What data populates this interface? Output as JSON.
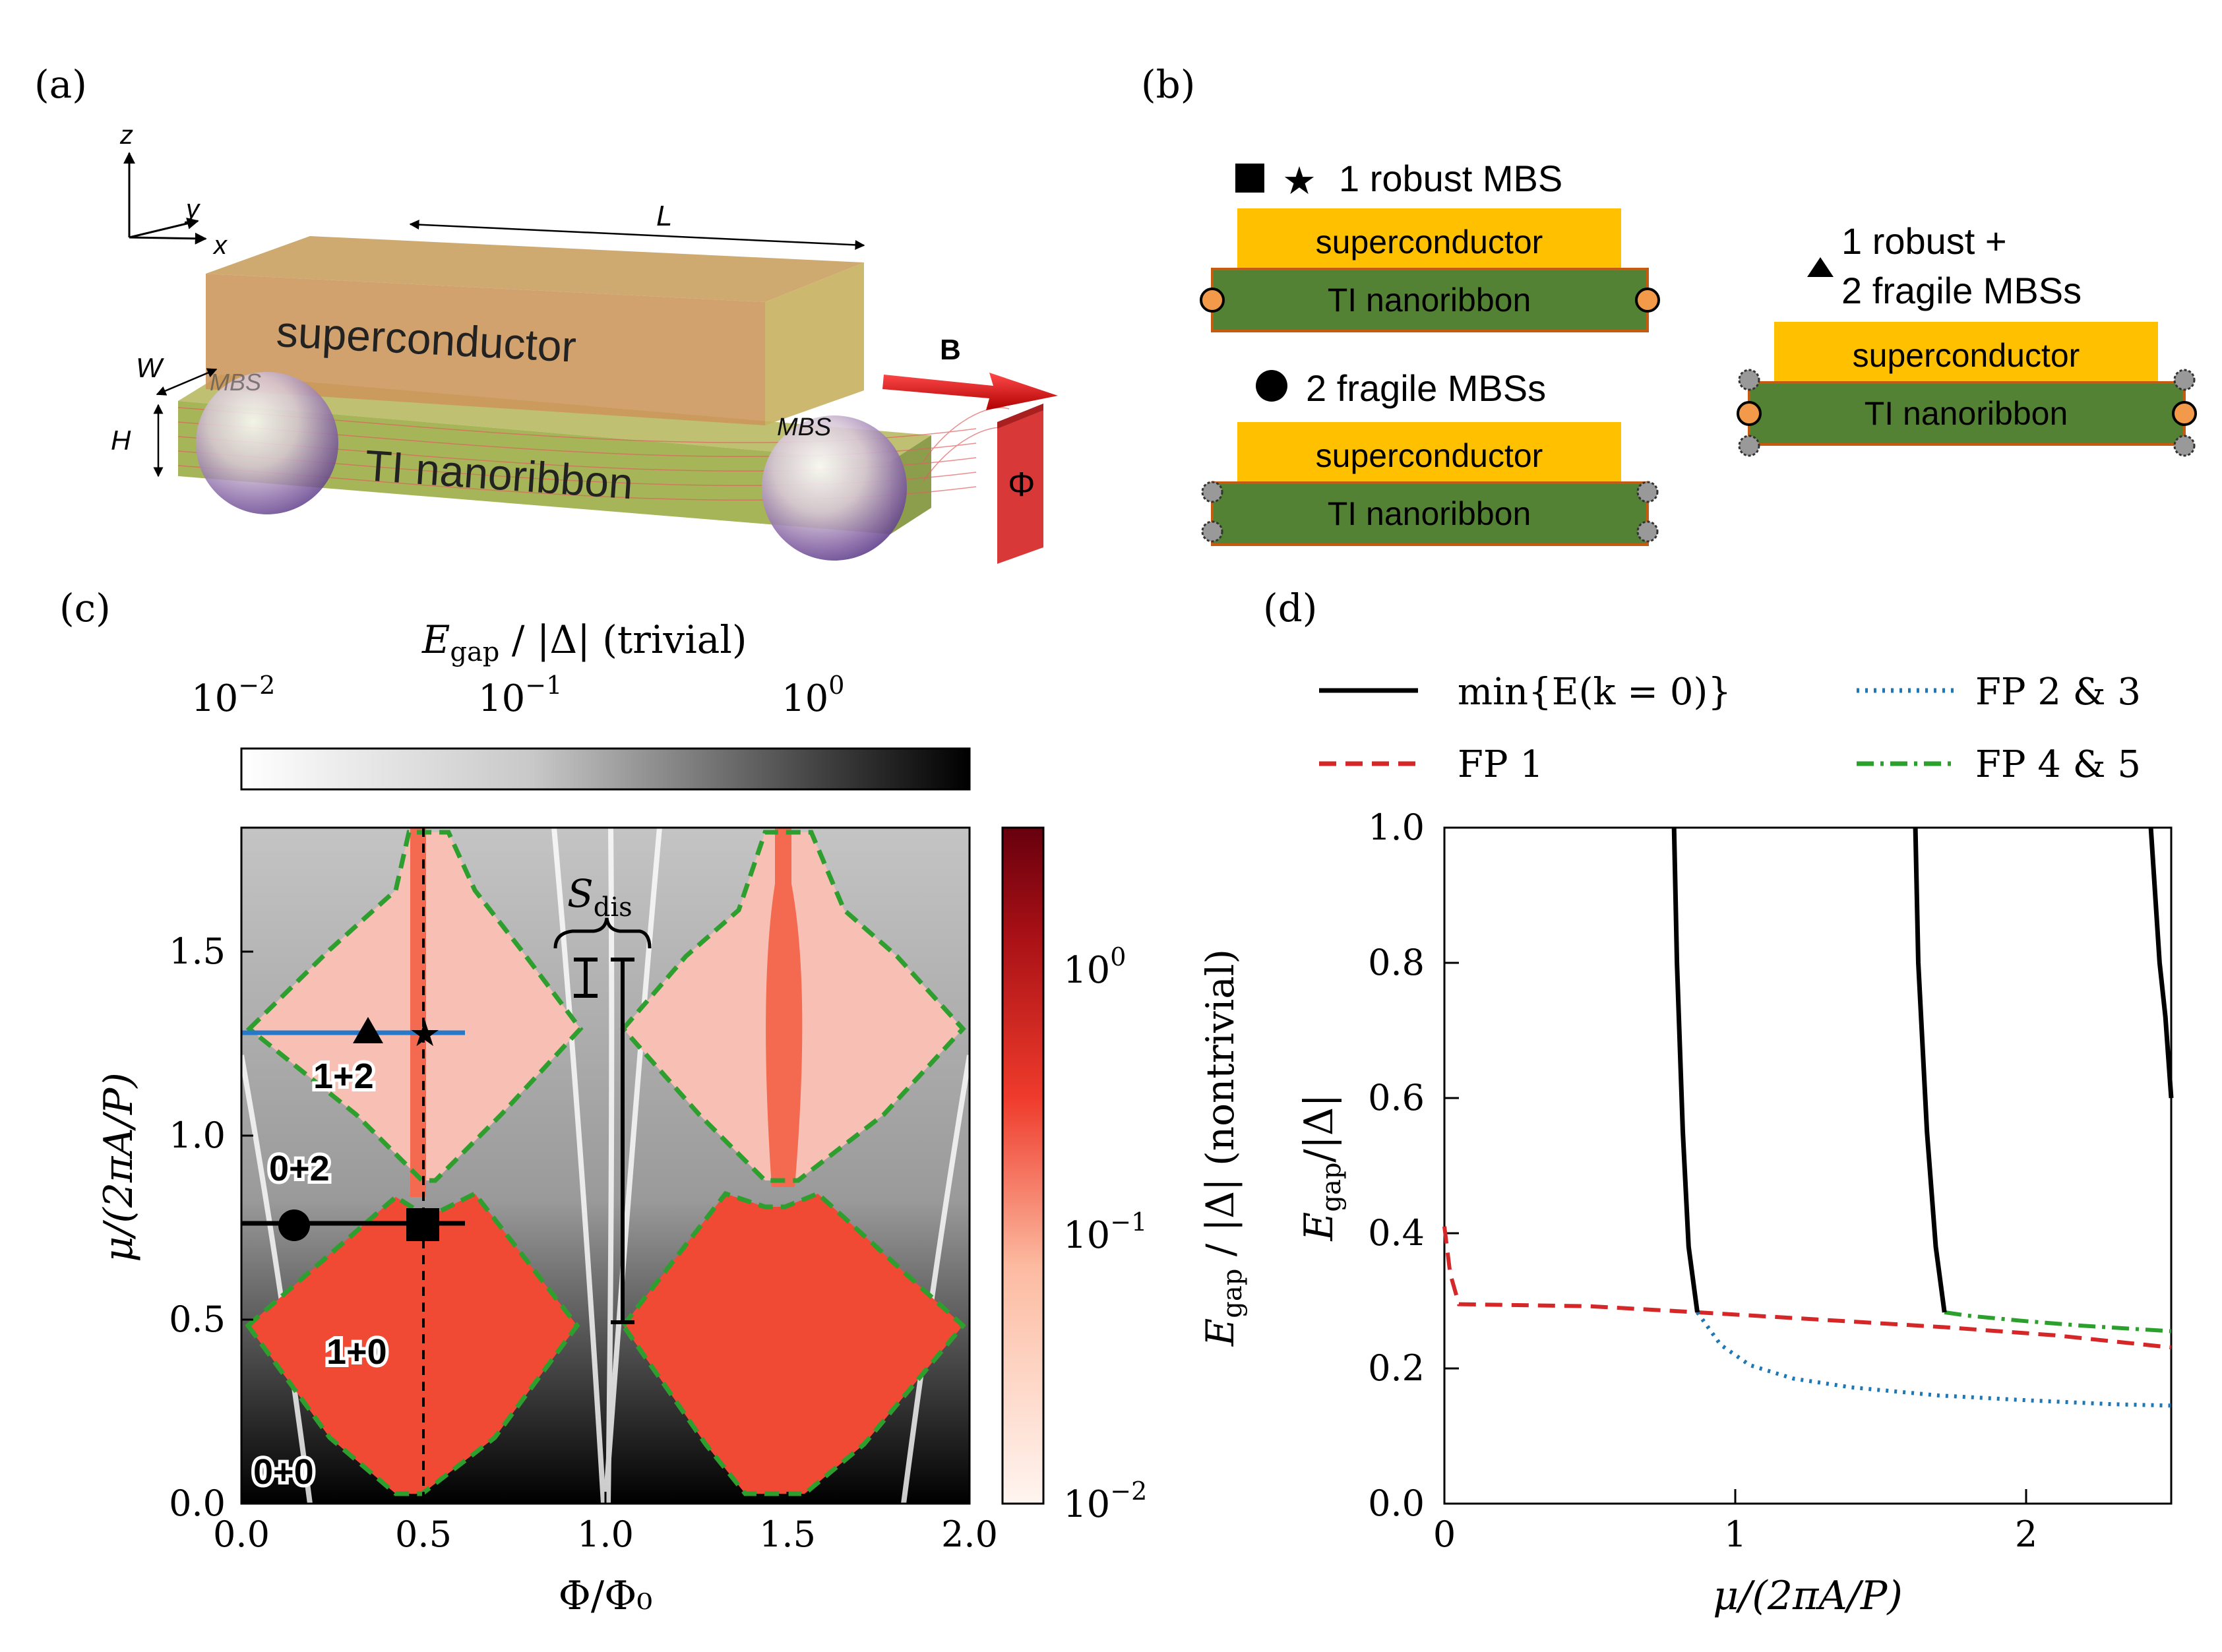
{
  "panels": {
    "a": {
      "label": "(a)",
      "axes": {
        "z": "z",
        "y": "y",
        "x": "x"
      },
      "dims": {
        "L": "L",
        "W": "W",
        "H": "H"
      },
      "superconductor_label": "superconductor",
      "nanoribbon_label": "TI nanoribbon",
      "mbs_left": "MBS",
      "mbs_right": "MBS",
      "field_label": "B",
      "flux_label": "Φ"
    },
    "b": {
      "label": "(b)",
      "case1": {
        "title": "1 robust MBS"
      },
      "case2": {
        "title": "2 fragile MBSs"
      },
      "case3": {
        "title_line1": "1 robust +",
        "title_line2": "2 fragile MBSs"
      },
      "sc_label": "superconductor",
      "ti_label": "TI nanoribbon"
    },
    "c": {
      "label": "(c)",
      "colorbar_top_title": "E_gap / |Δ| (trivial)",
      "colorbar_top_ticks": [
        "10",
        "10",
        "10"
      ],
      "colorbar_top_exps": [
        "−2",
        "−1",
        "0"
      ],
      "colorbar_right_label": "E_gap / |Δ| (nontrivial)",
      "colorbar_right_ticks": [
        "10",
        "10",
        "10"
      ],
      "colorbar_right_exps": [
        "0",
        "−1",
        "−2"
      ],
      "xlabel": "Φ/Φ₀",
      "ylabel": "μ/(2πA/P)",
      "xticks": [
        "0.0",
        "0.5",
        "1.0",
        "1.5",
        "2.0"
      ],
      "yticks": [
        "0.0",
        "0.5",
        "1.0",
        "1.5"
      ],
      "region_labels": [
        "1+2",
        "0+2",
        "1+0",
        "0+0"
      ],
      "sdis_label": "S",
      "sdis_sub": "dis"
    },
    "d": {
      "label": "(d)",
      "legend": {
        "solid": "min{E(k = 0)}",
        "fp1": "FP 1",
        "fp23": "FP 2 & 3",
        "fp45": "FP 4 & 5"
      },
      "xlabel": "μ/(2πA/P)",
      "ylabel": "E_gap/|Δ|",
      "xticks": [
        "0",
        "1",
        "2"
      ],
      "yticks": [
        "0.0",
        "0.2",
        "0.4",
        "0.6",
        "0.8",
        "1.0"
      ]
    }
  },
  "colors": {
    "superconductor": "#ffc000",
    "nanoribbon": "#548235",
    "robust_mbs": "#f4a460",
    "fp1": "#d62728",
    "fp23": "#1f77b4",
    "fp45": "#2ca02c",
    "heat_red": "#f04a34",
    "heat_light": "#f8c0b4"
  },
  "chart_data": {
    "type": "line",
    "title": "",
    "xlabel": "μ/(2πA/P)",
    "ylabel": "E_gap/|Δ|",
    "xlim": [
      0,
      2.5
    ],
    "ylim": [
      0,
      1
    ],
    "series": [
      {
        "name": "FP 1",
        "style": "dashed",
        "x": [
          0,
          0.02,
          0.05,
          0.5,
          0.87,
          1.3,
          1.72,
          2.1,
          2.5
        ],
        "y": [
          0.41,
          0.34,
          0.295,
          0.292,
          0.283,
          0.272,
          0.261,
          0.249,
          0.231
        ]
      },
      {
        "name": "FP 2 & 3",
        "style": "dotted",
        "x": [
          0.87,
          0.95,
          1.05,
          1.2,
          1.4,
          1.7,
          2.0,
          2.3,
          2.5
        ],
        "y": [
          0.283,
          0.235,
          0.205,
          0.185,
          0.172,
          0.16,
          0.153,
          0.147,
          0.145
        ]
      },
      {
        "name": "FP 4 & 5",
        "style": "dashdot",
        "x": [
          1.72,
          1.8,
          2.0,
          2.2,
          2.5
        ],
        "y": [
          0.283,
          0.278,
          0.27,
          0.263,
          0.255
        ]
      },
      {
        "name": "min{E(k = 0)}",
        "style": "solid",
        "x": [
          0.79,
          0.8,
          0.82,
          0.84,
          0.87
        ],
        "y": [
          1.0,
          0.8,
          0.55,
          0.38,
          0.283
        ]
      },
      {
        "name": "min{E(k = 0)}",
        "style": "solid",
        "x": [
          1.62,
          1.63,
          1.66,
          1.69,
          1.72
        ],
        "y": [
          1.0,
          0.8,
          0.55,
          0.38,
          0.283
        ]
      },
      {
        "name": "min{E(k = 0)}",
        "style": "solid",
        "x": [
          2.43,
          2.46,
          2.48,
          2.5
        ],
        "y": [
          1.0,
          0.8,
          0.72,
          0.6
        ]
      }
    ]
  }
}
